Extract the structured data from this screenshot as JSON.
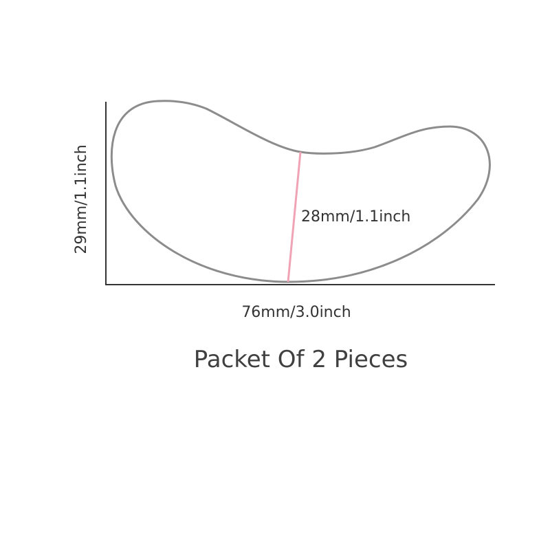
{
  "diagram": {
    "width_label": "76mm/3.0inch",
    "height_label": "29mm/1.1inch",
    "inner_height_label": "28mm/1.1inch",
    "caption": "Packet Of 2 Pieces",
    "colors": {
      "outline": "#8c8c8c",
      "axis": "#333333",
      "measure_line": "#f0a3b5",
      "text": "#333333"
    }
  }
}
